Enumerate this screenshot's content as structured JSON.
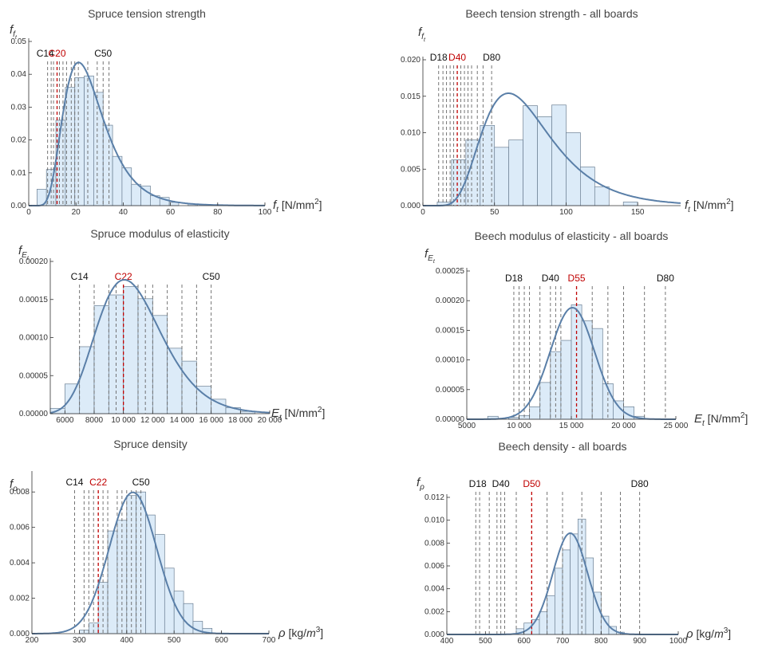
{
  "chart_data": [
    {
      "type": "histogram",
      "title": "Spruce tension strength",
      "ylabel": "f_ft",
      "xlabel": "f_t [N/mm²]",
      "ylabel_main": "f",
      "ylabel_sub": "f",
      "ylabel_subsub": "t",
      "xlabel_sym": "f",
      "xlabel_symsub": "t",
      "xlabel_unit": " [N/mm",
      "xlabel_sup": "2",
      "xlabel_close": "]",
      "xlim": [
        0,
        100
      ],
      "ylim": [
        0,
        0.05
      ],
      "xticks": [
        0,
        20,
        40,
        60,
        80,
        100
      ],
      "xtick_labels": [
        "0",
        "20",
        "40",
        "60",
        "80",
        "100"
      ],
      "yticks": [
        0,
        0.01,
        0.02,
        0.03,
        0.04,
        0.05
      ],
      "ytick_labels": [
        "0.00",
        "0.01",
        "0.02",
        "0.03",
        "0.04",
        "0.05"
      ],
      "bins": [
        {
          "x0": 3.5,
          "x1": 7.5,
          "h": 0.005
        },
        {
          "x0": 7.5,
          "x1": 11.5,
          "h": 0.011
        },
        {
          "x0": 11.5,
          "x1": 15.5,
          "h": 0.026
        },
        {
          "x0": 15.5,
          "x1": 19.5,
          "h": 0.036
        },
        {
          "x0": 19.5,
          "x1": 23.5,
          "h": 0.039
        },
        {
          "x0": 23.5,
          "x1": 27.5,
          "h": 0.0395
        },
        {
          "x0": 27.5,
          "x1": 31.5,
          "h": 0.0345
        },
        {
          "x0": 31.5,
          "x1": 35.5,
          "h": 0.0245
        },
        {
          "x0": 35.5,
          "x1": 39.5,
          "h": 0.015
        },
        {
          "x0": 39.5,
          "x1": 43.5,
          "h": 0.0115
        },
        {
          "x0": 43.5,
          "x1": 47.5,
          "h": 0.0065
        },
        {
          "x0": 47.5,
          "x1": 51.5,
          "h": 0.006
        },
        {
          "x0": 51.5,
          "x1": 55.5,
          "h": 0.003
        },
        {
          "x0": 55.5,
          "x1": 59.5,
          "h": 0.0025
        },
        {
          "x0": 59.5,
          "x1": 63.5,
          "h": 0.001
        },
        {
          "x0": 67.5,
          "x1": 71.5,
          "h": 0.0005
        }
      ],
      "curve": {
        "dist": "lognormal",
        "mu": 3.21,
        "sigma": 0.4
      },
      "grade_lines": {
        "values": [
          8,
          9.5,
          10.5,
          12,
          13,
          14.5,
          16,
          18,
          19.5,
          21,
          25,
          29,
          31.5,
          34
        ],
        "highlight": 12
      },
      "grade_labels": [
        {
          "text": "C14",
          "x": 7,
          "color": "#111111"
        },
        {
          "text": "C20",
          "x": 12,
          "color": "#c00000"
        },
        {
          "text": "C50",
          "x": 31.5,
          "color": "#111111"
        }
      ]
    },
    {
      "type": "histogram",
      "title": "Beech tension strength - all boards",
      "ylabel": "f_ft",
      "xlabel": "f_t [N/mm²]",
      "ylabel_main": "f",
      "ylabel_sub": "f",
      "ylabel_subsub": "t",
      "xlabel_sym": "f",
      "xlabel_symsub": "t",
      "xlabel_unit": " [N/mm",
      "xlabel_sup": "2",
      "xlabel_close": "]",
      "xlim": [
        0,
        180
      ],
      "ylim": [
        0,
        0.02
      ],
      "xticks": [
        0,
        50,
        100,
        150
      ],
      "xtick_labels": [
        "0",
        "50",
        "100",
        "150"
      ],
      "yticks": [
        0,
        0.005,
        0.01,
        0.015,
        0.02
      ],
      "ytick_labels": [
        "0.000",
        "0.005",
        "0.010",
        "0.015",
        "0.020"
      ],
      "bins": [
        {
          "x0": 10,
          "x1": 20,
          "h": 0.0005
        },
        {
          "x0": 20,
          "x1": 30,
          "h": 0.0063
        },
        {
          "x0": 30,
          "x1": 40,
          "h": 0.009
        },
        {
          "x0": 40,
          "x1": 50,
          "h": 0.011
        },
        {
          "x0": 50,
          "x1": 60,
          "h": 0.008
        },
        {
          "x0": 60,
          "x1": 70,
          "h": 0.009
        },
        {
          "x0": 70,
          "x1": 80,
          "h": 0.0137
        },
        {
          "x0": 80,
          "x1": 90,
          "h": 0.0122
        },
        {
          "x0": 90,
          "x1": 100,
          "h": 0.0138
        },
        {
          "x0": 100,
          "x1": 110,
          "h": 0.01
        },
        {
          "x0": 110,
          "x1": 120,
          "h": 0.0053
        },
        {
          "x0": 120,
          "x1": 130,
          "h": 0.0026
        },
        {
          "x0": 140,
          "x1": 150,
          "h": 0.0005
        }
      ],
      "curve": {
        "dist": "lognormal",
        "mu": 4.25,
        "sigma": 0.4
      },
      "grade_lines": {
        "values": [
          11,
          14,
          16.5,
          19,
          21.5,
          24,
          26.5,
          29,
          31.5,
          34,
          38,
          42,
          48
        ],
        "highlight": 24
      },
      "grade_labels": [
        {
          "text": "D18",
          "x": 11,
          "color": "#111111"
        },
        {
          "text": "D40",
          "x": 24,
          "color": "#c00000"
        },
        {
          "text": "D80",
          "x": 48,
          "color": "#111111"
        }
      ]
    },
    {
      "type": "histogram",
      "title": "Spruce modulus of elasticity",
      "ylabel": "f_Et",
      "xlabel": "E_t [N/mm²]",
      "ylabel_main": "f",
      "ylabel_sub": "E",
      "ylabel_subsub": "t",
      "xlabel_sym": "E",
      "xlabel_symsub": "t",
      "xlabel_unit": " [N/mm",
      "xlabel_sup": "2",
      "xlabel_close": "]",
      "xlim": [
        5000,
        20000
      ],
      "ylim": [
        0,
        0.0002
      ],
      "xticks": [
        6000,
        8000,
        10000,
        12000,
        14000,
        16000,
        18000,
        20000
      ],
      "xtick_labels": [
        "6000",
        "8000",
        "10 000",
        "12 000",
        "14 000",
        "16 000",
        "18 000",
        "20 000"
      ],
      "yticks": [
        0,
        5e-05,
        0.0001,
        0.00015,
        0.0002
      ],
      "ytick_labels": [
        "0.00000",
        "0.00005",
        "0.00010",
        "0.00015",
        "0.00020"
      ],
      "bins": [
        {
          "x0": 5000,
          "x1": 6000,
          "h": 7e-06
        },
        {
          "x0": 6000,
          "x1": 7000,
          "h": 3.9e-05
        },
        {
          "x0": 7000,
          "x1": 8000,
          "h": 8.8e-05
        },
        {
          "x0": 8000,
          "x1": 9000,
          "h": 0.000142
        },
        {
          "x0": 9000,
          "x1": 10000,
          "h": 0.000156
        },
        {
          "x0": 10000,
          "x1": 11000,
          "h": 0.000167
        },
        {
          "x0": 11000,
          "x1": 12000,
          "h": 0.000151
        },
        {
          "x0": 12000,
          "x1": 13000,
          "h": 0.000129
        },
        {
          "x0": 13000,
          "x1": 14000,
          "h": 8.6e-05
        },
        {
          "x0": 14000,
          "x1": 15000,
          "h": 6.9e-05
        },
        {
          "x0": 15000,
          "x1": 16000,
          "h": 3.6e-05
        },
        {
          "x0": 16000,
          "x1": 17000,
          "h": 1.9e-05
        },
        {
          "x0": 17000,
          "x1": 18000,
          "h": 8e-06
        },
        {
          "x0": 18000,
          "x1": 19000,
          "h": 3e-06
        }
      ],
      "curve": {
        "dist": "lognormal",
        "mu": 9.265,
        "sigma": 0.22
      },
      "grade_lines": {
        "values": [
          7000,
          8000,
          9000,
          9500,
          10000,
          11000,
          11500,
          12000,
          13000,
          14000,
          15000,
          16000
        ],
        "highlight": 10000
      },
      "grade_labels": [
        {
          "text": "C14",
          "x": 7000,
          "color": "#111111"
        },
        {
          "text": "C22",
          "x": 10000,
          "color": "#c00000"
        },
        {
          "text": "C50",
          "x": 16000,
          "color": "#111111"
        }
      ]
    },
    {
      "type": "histogram",
      "title": "Beech modulus of elasticity - all boards",
      "ylabel": "f_Et",
      "xlabel": "E_t [N/mm²]",
      "ylabel_main": "f",
      "ylabel_sub": "E",
      "ylabel_subsub": "t",
      "xlabel_sym": "E",
      "xlabel_symsub": "t",
      "xlabel_unit": " [N/mm",
      "xlabel_sup": "2",
      "xlabel_close": "]",
      "xlim": [
        5000,
        25000
      ],
      "ylim": [
        0,
        0.00025
      ],
      "xticks": [
        5000,
        10000,
        15000,
        20000,
        25000
      ],
      "xtick_labels": [
        "5000",
        "10 000",
        "15 000",
        "20 000",
        "25 000"
      ],
      "yticks": [
        0,
        5e-05,
        0.0001,
        0.00015,
        0.0002,
        0.00025
      ],
      "ytick_labels": [
        "0.00000",
        "0.00005",
        "0.00010",
        "0.00015",
        "0.00020",
        "0.00025"
      ],
      "bins": [
        {
          "x0": 7000,
          "x1": 8000,
          "h": 5e-06
        },
        {
          "x0": 9000,
          "x1": 10000,
          "h": 3e-06
        },
        {
          "x0": 10000,
          "x1": 11000,
          "h": 6e-06
        },
        {
          "x0": 11000,
          "x1": 12000,
          "h": 2.1e-05
        },
        {
          "x0": 12000,
          "x1": 13000,
          "h": 6.2e-05
        },
        {
          "x0": 13000,
          "x1": 14000,
          "h": 0.000114
        },
        {
          "x0": 14000,
          "x1": 15000,
          "h": 0.000133
        },
        {
          "x0": 15000,
          "x1": 16000,
          "h": 0.000193
        },
        {
          "x0": 16000,
          "x1": 17000,
          "h": 0.000166
        },
        {
          "x0": 17000,
          "x1": 18000,
          "h": 0.000153
        },
        {
          "x0": 18000,
          "x1": 19000,
          "h": 6e-05
        },
        {
          "x0": 19000,
          "x1": 20000,
          "h": 3.1e-05
        },
        {
          "x0": 20000,
          "x1": 21000,
          "h": 2.1e-05
        },
        {
          "x0": 21000,
          "x1": 22000,
          "h": 5e-06
        }
      ],
      "curve": {
        "dist": "normal",
        "mean": 15100,
        "sd": 2120
      },
      "grade_lines": {
        "values": [
          9500,
          10000,
          10500,
          11000,
          12000,
          13000,
          13500,
          14000,
          15500,
          17000,
          18500,
          20000,
          22000,
          24000
        ],
        "highlight": 15500
      },
      "grade_labels": [
        {
          "text": "D18",
          "x": 9500,
          "color": "#111111"
        },
        {
          "text": "D40",
          "x": 13000,
          "color": "#111111"
        },
        {
          "text": "D55",
          "x": 15500,
          "color": "#c00000"
        },
        {
          "text": "D80",
          "x": 24000,
          "color": "#111111"
        }
      ]
    },
    {
      "type": "histogram",
      "title": "Spruce density",
      "ylabel": "f_ρ",
      "xlabel": "ρ [kg/m³]",
      "ylabel_main": "f",
      "ylabel_sub": "ρ",
      "ylabel_subsub": "",
      "xlabel_sym": "ρ",
      "xlabel_symsub": "",
      "xlabel_unit": " [kg/",
      "xlabel_unit_it": "m",
      "xlabel_sup": "3",
      "xlabel_close": "]",
      "xlim": [
        200,
        700
      ],
      "ylim": [
        0,
        0.009
      ],
      "xticks": [
        200,
        300,
        400,
        500,
        600,
        700
      ],
      "xtick_labels": [
        "200",
        "300",
        "400",
        "500",
        "600",
        "700"
      ],
      "yticks": [
        0,
        0.002,
        0.004,
        0.006,
        0.008
      ],
      "ytick_labels": [
        "0.000",
        "0.002",
        "0.004",
        "0.006",
        "0.008"
      ],
      "bins": [
        {
          "x0": 300,
          "x1": 320,
          "h": 0.0002
        },
        {
          "x0": 320,
          "x1": 340,
          "h": 0.0006
        },
        {
          "x0": 340,
          "x1": 360,
          "h": 0.0029
        },
        {
          "x0": 360,
          "x1": 380,
          "h": 0.0058
        },
        {
          "x0": 380,
          "x1": 400,
          "h": 0.0064
        },
        {
          "x0": 400,
          "x1": 420,
          "h": 0.0078
        },
        {
          "x0": 420,
          "x1": 440,
          "h": 0.008
        },
        {
          "x0": 440,
          "x1": 460,
          "h": 0.0067
        },
        {
          "x0": 460,
          "x1": 480,
          "h": 0.0056
        },
        {
          "x0": 480,
          "x1": 500,
          "h": 0.0037
        },
        {
          "x0": 500,
          "x1": 520,
          "h": 0.0024
        },
        {
          "x0": 520,
          "x1": 540,
          "h": 0.0017
        },
        {
          "x0": 540,
          "x1": 560,
          "h": 0.0007
        },
        {
          "x0": 560,
          "x1": 580,
          "h": 0.0003
        }
      ],
      "curve": {
        "dist": "normal",
        "mean": 413,
        "sd": 50
      },
      "grade_lines": {
        "values": [
          290,
          310,
          320,
          330,
          340,
          350,
          360,
          380,
          390,
          400,
          410,
          420,
          430
        ],
        "highlight": 340
      },
      "grade_labels": [
        {
          "text": "C14",
          "x": 290,
          "color": "#111111"
        },
        {
          "text": "C22",
          "x": 340,
          "color": "#c00000"
        },
        {
          "text": "C50",
          "x": 430,
          "color": "#111111"
        }
      ]
    },
    {
      "type": "histogram",
      "title": "Beech density - all boards",
      "ylabel": "f_ρ",
      "xlabel": "ρ [kg/m³]",
      "ylabel_main": "f",
      "ylabel_sub": "ρ",
      "ylabel_subsub": "",
      "xlabel_sym": "ρ",
      "xlabel_symsub": "",
      "xlabel_unit": " [kg/",
      "xlabel_unit_it": "m",
      "xlabel_sup": "3",
      "xlabel_close": "]",
      "xlim": [
        400,
        1000
      ],
      "ylim": [
        0,
        0.012
      ],
      "xticks": [
        400,
        500,
        600,
        700,
        800,
        900,
        1000
      ],
      "xtick_labels": [
        "400",
        "500",
        "600",
        "700",
        "800",
        "900",
        "1000"
      ],
      "yticks": [
        0,
        0.002,
        0.004,
        0.006,
        0.008,
        0.01,
        0.012
      ],
      "ytick_labels": [
        "0.000",
        "0.002",
        "0.004",
        "0.006",
        "0.008",
        "0.010",
        "0.012"
      ],
      "bins": [
        {
          "x0": 580,
          "x1": 600,
          "h": 0.0005
        },
        {
          "x0": 600,
          "x1": 620,
          "h": 0.001
        },
        {
          "x0": 620,
          "x1": 640,
          "h": 0.0013
        },
        {
          "x0": 640,
          "x1": 660,
          "h": 0.002
        },
        {
          "x0": 660,
          "x1": 680,
          "h": 0.0034
        },
        {
          "x0": 680,
          "x1": 700,
          "h": 0.0058
        },
        {
          "x0": 700,
          "x1": 720,
          "h": 0.0074
        },
        {
          "x0": 720,
          "x1": 740,
          "h": 0.0088
        },
        {
          "x0": 740,
          "x1": 760,
          "h": 0.0101
        },
        {
          "x0": 760,
          "x1": 780,
          "h": 0.0067
        },
        {
          "x0": 780,
          "x1": 800,
          "h": 0.0037
        },
        {
          "x0": 800,
          "x1": 820,
          "h": 0.0016
        },
        {
          "x0": 820,
          "x1": 840,
          "h": 0.0007
        },
        {
          "x0": 840,
          "x1": 860,
          "h": 0.0002
        }
      ],
      "curve": {
        "dist": "normal",
        "mean": 720,
        "sd": 45
      },
      "grade_lines": {
        "values": [
          475,
          485,
          510,
          530,
          540,
          550,
          580,
          620,
          660,
          700,
          750,
          800,
          850,
          900
        ],
        "highlight": 620
      },
      "grade_labels": [
        {
          "text": "D18",
          "x": 480,
          "color": "#111111"
        },
        {
          "text": "D40",
          "x": 540,
          "color": "#111111"
        },
        {
          "text": "D50",
          "x": 620,
          "color": "#c00000"
        },
        {
          "text": "D80",
          "x": 900,
          "color": "#111111"
        }
      ]
    }
  ],
  "colors": {
    "bar_fill": "#dcebf8",
    "bar_stroke": "#6b7f93",
    "curve": "#5a7fa8",
    "grade_line": "#666666",
    "highlight": "#c00000",
    "axis": "#333333"
  }
}
